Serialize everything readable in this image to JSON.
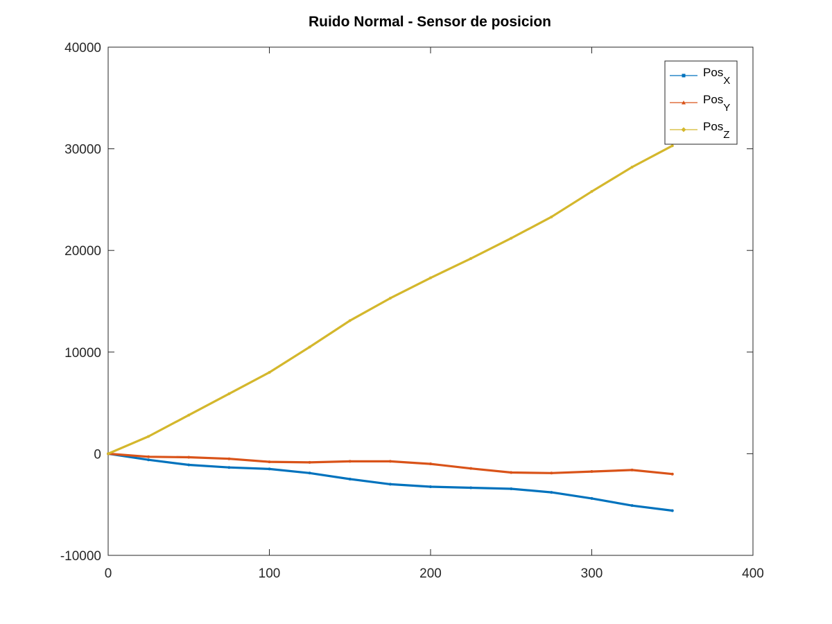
{
  "chart_data": {
    "type": "line",
    "title": "Ruido Normal - Sensor de posicion",
    "xlabel": "",
    "ylabel": "",
    "xlim": [
      0,
      400
    ],
    "ylim": [
      -10000,
      40000
    ],
    "xticks": [
      0,
      100,
      200,
      300,
      400
    ],
    "yticks": [
      -10000,
      0,
      10000,
      20000,
      30000,
      40000
    ],
    "xtick_labels": [
      "0",
      "100",
      "200",
      "300",
      "400"
    ],
    "ytick_labels": [
      "-10000",
      "0",
      "10000",
      "20000",
      "30000",
      "40000"
    ],
    "grid": false,
    "legend_position": "top-right",
    "series": [
      {
        "name": "Pos",
        "subscript": "X",
        "color": "#0072bd",
        "marker": "square",
        "x": [
          0,
          25,
          50,
          75,
          100,
          125,
          150,
          175,
          200,
          225,
          250,
          275,
          300,
          325,
          350
        ],
        "y": [
          0,
          -600,
          -1100,
          -1350,
          -1500,
          -1900,
          -2500,
          -3000,
          -3250,
          -3350,
          -3450,
          -3800,
          -4400,
          -5100,
          -5600
        ]
      },
      {
        "name": "Pos",
        "subscript": "Y",
        "color": "#d95319",
        "marker": "triangle",
        "x": [
          0,
          25,
          50,
          75,
          100,
          125,
          150,
          175,
          200,
          225,
          250,
          275,
          300,
          325,
          350
        ],
        "y": [
          0,
          -300,
          -350,
          -500,
          -800,
          -850,
          -750,
          -750,
          -1000,
          -1450,
          -1850,
          -1900,
          -1750,
          -1600,
          -2000
        ]
      },
      {
        "name": "Pos",
        "subscript": "Z",
        "color": "#d4b72c",
        "marker": "diamond",
        "x": [
          0,
          25,
          50,
          75,
          100,
          125,
          150,
          175,
          200,
          225,
          250,
          275,
          300,
          325,
          350
        ],
        "y": [
          0,
          1700,
          3800,
          5900,
          8000,
          10500,
          13100,
          15300,
          17300,
          19200,
          21200,
          23300,
          25800,
          28200,
          30300
        ]
      }
    ]
  }
}
